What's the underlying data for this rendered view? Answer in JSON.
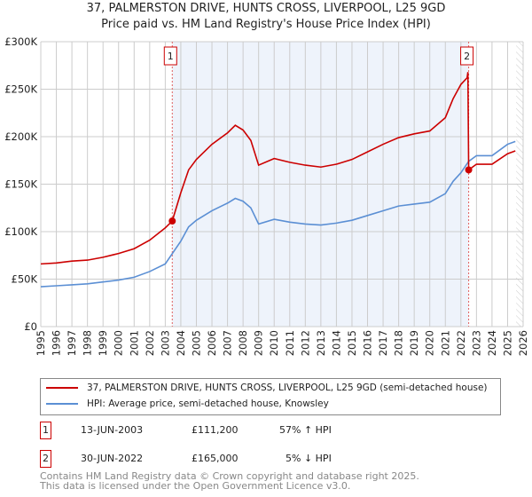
{
  "title": "37, PALMERSTON DRIVE, HUNTS CROSS, LIVERPOOL, L25 9GD",
  "subtitle": "Price paid vs. HM Land Registry's House Price Index (HPI)",
  "colors": {
    "property": "#cc0000",
    "hpi": "#5b8fd4",
    "shade": "#eef3fb"
  },
  "chart_data": {
    "type": "line",
    "xlim": [
      1995,
      2026
    ],
    "ylim": [
      0,
      300000
    ],
    "yticks": [
      {
        "v": 0,
        "label": "£0"
      },
      {
        "v": 50000,
        "label": "£50K"
      },
      {
        "v": 100000,
        "label": "£100K"
      },
      {
        "v": 150000,
        "label": "£150K"
      },
      {
        "v": 200000,
        "label": "£200K"
      },
      {
        "v": 250000,
        "label": "£250K"
      },
      {
        "v": 300000,
        "label": "£300K"
      }
    ],
    "xticks": [
      "1995",
      "1996",
      "1997",
      "1998",
      "1999",
      "2000",
      "2001",
      "2002",
      "2003",
      "2004",
      "2005",
      "2006",
      "2007",
      "2008",
      "2009",
      "2010",
      "2011",
      "2012",
      "2013",
      "2014",
      "2015",
      "2016",
      "2017",
      "2018",
      "2019",
      "2020",
      "2021",
      "2022",
      "2023",
      "2024",
      "2025",
      "2026"
    ],
    "series": [
      {
        "name": "37, PALMERSTON DRIVE, HUNTS CROSS, LIVERPOOL, L25 9GD (semi-detached house)",
        "color": "#cc0000",
        "x": [
          1995,
          1996,
          1997,
          1998,
          1999,
          2000,
          2001,
          2002,
          2003,
          2003.45,
          2004,
          2004.5,
          2005,
          2006,
          2007,
          2007.5,
          2008,
          2008.5,
          2009,
          2010,
          2011,
          2012,
          2013,
          2014,
          2015,
          2016,
          2017,
          2018,
          2019,
          2020,
          2021,
          2021.5,
          2022,
          2022.4,
          2022.45,
          2022.5,
          2023,
          2024,
          2025,
          2025.5
        ],
        "y": [
          66000,
          67000,
          69000,
          70000,
          73000,
          77000,
          82000,
          91000,
          104000,
          111200,
          141000,
          165000,
          176000,
          192000,
          204000,
          212000,
          207000,
          196000,
          170000,
          177000,
          173000,
          170000,
          168000,
          171000,
          176000,
          184000,
          192000,
          199000,
          203000,
          206000,
          220000,
          240000,
          255000,
          262000,
          268000,
          165000,
          171000,
          171000,
          182000,
          185000
        ]
      },
      {
        "name": "HPI: Average price, semi-detached house, Knowsley",
        "color": "#5b8fd4",
        "x": [
          1995,
          1996,
          1997,
          1998,
          1999,
          2000,
          2001,
          2002,
          2003,
          2004,
          2004.5,
          2005,
          2006,
          2007,
          2007.5,
          2008,
          2008.5,
          2009,
          2010,
          2011,
          2012,
          2013,
          2014,
          2015,
          2016,
          2017,
          2018,
          2019,
          2020,
          2021,
          2021.5,
          2022,
          2022.5,
          2023,
          2024,
          2025,
          2025.5
        ],
        "y": [
          42000,
          43000,
          44000,
          45000,
          47000,
          49000,
          52000,
          58000,
          66000,
          90000,
          105000,
          112000,
          122000,
          130000,
          135000,
          132000,
          125000,
          108000,
          113000,
          110000,
          108000,
          107000,
          109000,
          112000,
          117000,
          122000,
          127000,
          129000,
          131000,
          140000,
          153000,
          162000,
          174000,
          180000,
          180000,
          192000,
          195000
        ]
      }
    ],
    "sales": [
      {
        "label": "1",
        "x": 2003.45,
        "price": 111200
      },
      {
        "label": "2",
        "x": 2022.5,
        "price": 165000
      }
    ]
  },
  "legend": {
    "property": "37, PALMERSTON DRIVE, HUNTS CROSS, LIVERPOOL, L25 9GD (semi-detached house)",
    "hpi": "HPI: Average price, semi-detached house, Knowsley"
  },
  "sales_table": [
    {
      "num": "1",
      "date": "13-JUN-2003",
      "price": "£111,200",
      "hpi": "57% ↑ HPI"
    },
    {
      "num": "2",
      "date": "30-JUN-2022",
      "price": "£165,000",
      "hpi": "5% ↓ HPI"
    }
  ],
  "footer": {
    "line1": "Contains HM Land Registry data © Crown copyright and database right 2025.",
    "line2": "This data is licensed under the Open Government Licence v3.0."
  }
}
